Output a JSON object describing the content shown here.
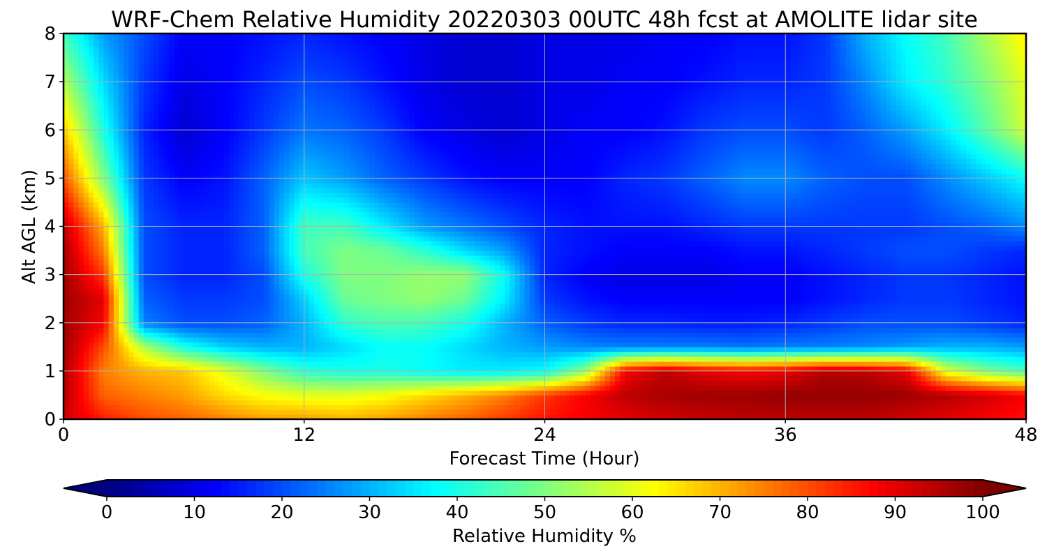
{
  "chart_data": {
    "type": "heatmap",
    "title": "WRF-Chem Relative Humidity 20220303 00UTC 48h fcst at AMOLITE lidar site",
    "xlabel": "Forecast Time (Hour)",
    "ylabel": "Alt AGL (km)",
    "xlim": [
      0,
      48
    ],
    "ylim": [
      0,
      8
    ],
    "xticks": [
      0,
      12,
      24,
      36,
      48
    ],
    "yticks": [
      0,
      1,
      2,
      3,
      4,
      5,
      6,
      7,
      8
    ],
    "grid": true,
    "colormap": "jet",
    "colorbar": {
      "label": "Relative Humidity %",
      "range": [
        0,
        100
      ],
      "ticks": [
        0,
        10,
        20,
        30,
        40,
        50,
        60,
        70,
        80,
        90,
        100
      ],
      "extend": "both",
      "orientation": "horizontal"
    },
    "x": [
      0,
      2,
      4,
      6,
      8,
      10,
      12,
      14,
      16,
      18,
      20,
      22,
      24,
      26,
      28,
      30,
      32,
      34,
      36,
      38,
      40,
      42,
      44,
      46,
      48
    ],
    "y": [
      0,
      0.5,
      1,
      1.5,
      2,
      2.5,
      3,
      3.5,
      4,
      5,
      6,
      7,
      8
    ],
    "z": [
      [
        92,
        85,
        80,
        78,
        75,
        72,
        72,
        70,
        72,
        75,
        78,
        82,
        86,
        88,
        90,
        92,
        93,
        94,
        94,
        94,
        94,
        92,
        90,
        88,
        86
      ],
      [
        95,
        78,
        75,
        72,
        66,
        62,
        60,
        60,
        62,
        66,
        70,
        75,
        82,
        88,
        94,
        96,
        97,
        97,
        98,
        98,
        98,
        97,
        95,
        92,
        88
      ],
      [
        96,
        75,
        70,
        68,
        60,
        50,
        42,
        40,
        40,
        38,
        36,
        36,
        38,
        52,
        88,
        94,
        90,
        88,
        90,
        95,
        94,
        90,
        60,
        50,
        45
      ],
      [
        97,
        80,
        55,
        40,
        33,
        30,
        30,
        34,
        38,
        38,
        34,
        30,
        28,
        26,
        25,
        25,
        25,
        24,
        25,
        25,
        26,
        28,
        30,
        30,
        28
      ],
      [
        97,
        88,
        25,
        20,
        20,
        22,
        30,
        42,
        45,
        44,
        40,
        30,
        22,
        18,
        16,
        16,
        15,
        15,
        16,
        18,
        20,
        20,
        20,
        18,
        16
      ],
      [
        97,
        90,
        22,
        18,
        18,
        20,
        33,
        48,
        50,
        52,
        48,
        36,
        18,
        14,
        12,
        12,
        12,
        12,
        12,
        14,
        16,
        18,
        18,
        16,
        14
      ],
      [
        97,
        82,
        20,
        16,
        16,
        20,
        40,
        50,
        50,
        52,
        52,
        38,
        16,
        12,
        10,
        10,
        10,
        12,
        12,
        14,
        16,
        18,
        18,
        16,
        14
      ],
      [
        96,
        75,
        20,
        16,
        16,
        22,
        44,
        50,
        48,
        42,
        34,
        28,
        16,
        14,
        12,
        12,
        12,
        14,
        14,
        16,
        18,
        20,
        20,
        18,
        16
      ],
      [
        94,
        70,
        20,
        16,
        16,
        22,
        44,
        44,
        36,
        28,
        24,
        20,
        16,
        14,
        14,
        14,
        16,
        18,
        18,
        18,
        18,
        18,
        20,
        22,
        26
      ],
      [
        80,
        50,
        18,
        12,
        14,
        22,
        32,
        28,
        22,
        18,
        14,
        12,
        12,
        12,
        16,
        18,
        22,
        26,
        26,
        22,
        20,
        20,
        26,
        32,
        38
      ],
      [
        68,
        40,
        16,
        8,
        12,
        18,
        24,
        22,
        18,
        12,
        10,
        8,
        10,
        12,
        12,
        14,
        18,
        20,
        20,
        18,
        22,
        28,
        36,
        46,
        58
      ],
      [
        55,
        34,
        18,
        10,
        12,
        16,
        20,
        18,
        14,
        10,
        8,
        8,
        10,
        10,
        12,
        12,
        14,
        16,
        16,
        18,
        26,
        36,
        42,
        50,
        60
      ],
      [
        44,
        28,
        20,
        12,
        12,
        14,
        16,
        14,
        12,
        10,
        8,
        8,
        10,
        10,
        10,
        12,
        12,
        14,
        14,
        18,
        30,
        38,
        44,
        54,
        64
      ]
    ]
  }
}
